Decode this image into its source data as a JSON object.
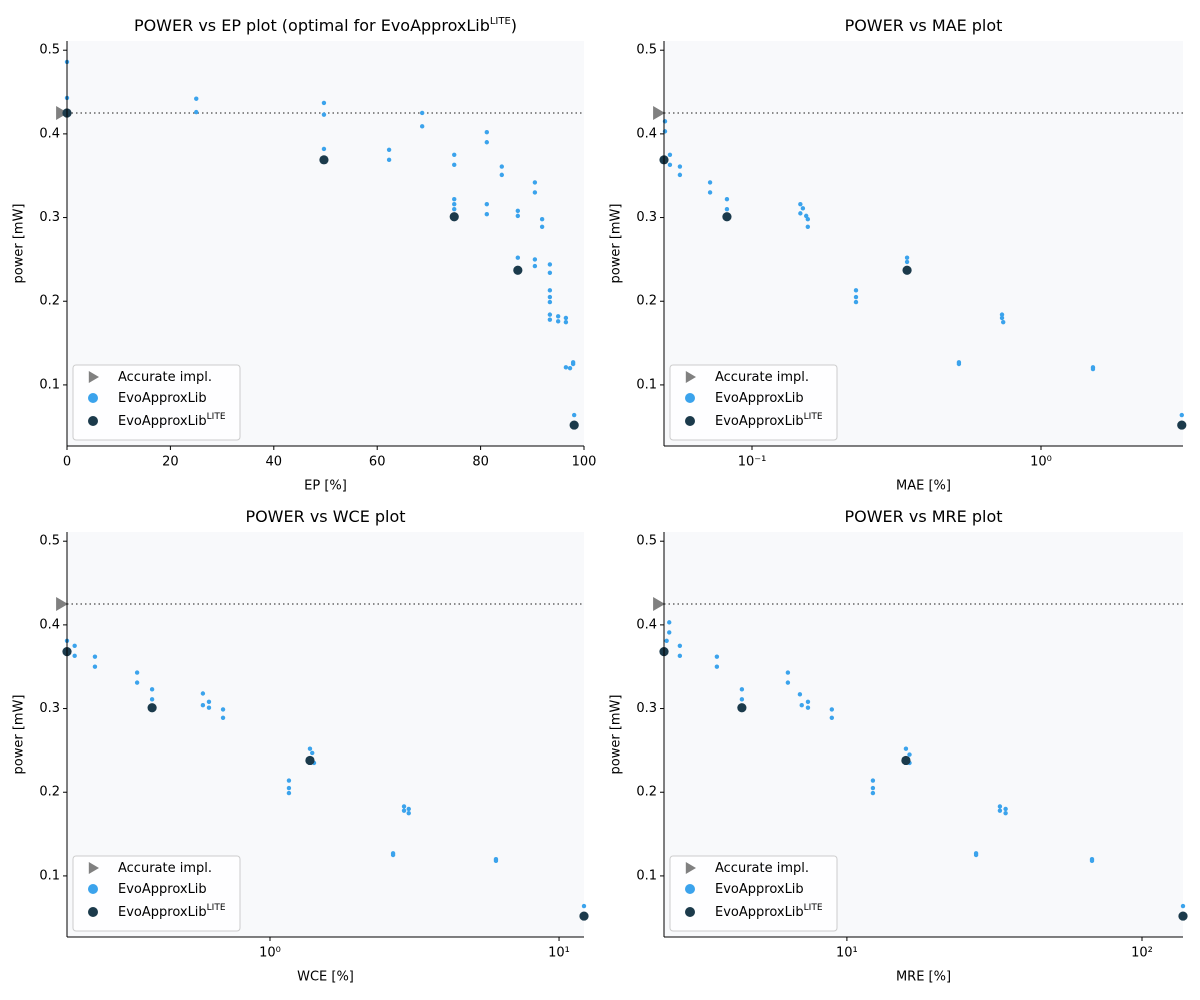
{
  "chart_data": [
    {
      "type": "scatter",
      "title": [
        "POWER vs EP plot (optimal for EvoApproxLib",
        "LITE",
        ")"
      ],
      "x_label": "EP [%]",
      "y_label": "power [mW]",
      "xscale": "linear",
      "xlim": [
        0,
        100
      ],
      "xticks": [
        0,
        20,
        40,
        60,
        80,
        100
      ],
      "ylim": [
        0.027,
        0.511
      ],
      "yticks": [
        0.1,
        0.2,
        0.3,
        0.4,
        0.5
      ],
      "reference_line": 0.425,
      "legend": "lower left",
      "series": [
        {
          "name": [
            "Accurate impl."
          ],
          "color": "#808080",
          "marker": "triangle",
          "x": [
            0
          ],
          "values": [
            0.425
          ]
        },
        {
          "name": [
            "EvoApproxLib"
          ],
          "color": "#3ba3ec",
          "marker": "dot",
          "x": [
            0,
            0,
            0,
            25,
            25,
            49.7,
            49.7,
            49.7,
            62.3,
            62.3,
            68.7,
            68.7,
            74.9,
            74.9,
            74.9,
            74.9,
            74.9,
            81.2,
            81.2,
            81.2,
            81.2,
            84.1,
            84.1,
            87.2,
            87.2,
            87.2,
            90.5,
            90.5,
            90.5,
            90.5,
            91.9,
            91.9,
            93.4,
            93.4,
            93.4,
            93.4,
            93.4,
            93.4,
            93.4,
            95,
            95,
            96.5,
            96.5,
            96.5,
            97.3,
            97.9,
            97.9,
            98.1
          ],
          "values": [
            0.486,
            0.443,
            0.425,
            0.442,
            0.426,
            0.437,
            0.423,
            0.382,
            0.381,
            0.369,
            0.425,
            0.409,
            0.375,
            0.363,
            0.322,
            0.316,
            0.31,
            0.402,
            0.39,
            0.316,
            0.304,
            0.361,
            0.351,
            0.308,
            0.302,
            0.252,
            0.342,
            0.33,
            0.25,
            0.242,
            0.298,
            0.289,
            0.244,
            0.234,
            0.213,
            0.205,
            0.199,
            0.184,
            0.178,
            0.182,
            0.176,
            0.18,
            0.175,
            0.121,
            0.12,
            0.127,
            0.125,
            0.064
          ]
        },
        {
          "name": [
            "EvoApproxLib",
            "LITE"
          ],
          "color": "#1b3a4b",
          "marker": "circle",
          "x": [
            0,
            49.7,
            74.9,
            87.2,
            98.1
          ],
          "values": [
            0.425,
            0.369,
            0.301,
            0.237,
            0.052
          ]
        }
      ]
    },
    {
      "type": "scatter",
      "title": [
        "POWER vs MAE plot"
      ],
      "x_label": "MAE [%]",
      "y_label": "power [mW]",
      "xscale": "log",
      "xlim": [
        0.0496,
        3.1
      ],
      "xticks": [
        {
          "value": 0.1,
          "label": "10⁻¹"
        },
        {
          "value": 1,
          "label": "10⁰"
        }
      ],
      "ylim": [
        0.027,
        0.511
      ],
      "yticks": [
        0.1,
        0.2,
        0.3,
        0.4,
        0.5
      ],
      "reference_line": 0.425,
      "legend": "lower left",
      "series": [
        {
          "name": [
            "Accurate impl."
          ],
          "color": "#808080",
          "marker": "triangle",
          "x": [
            0.0496
          ],
          "values": [
            0.425
          ]
        },
        {
          "name": [
            "EvoApproxLib"
          ],
          "color": "#3ba3ec",
          "marker": "dot",
          "x": [
            0.05,
            0.05,
            0.052,
            0.052,
            0.0563,
            0.0563,
            0.0716,
            0.0716,
            0.0819,
            0.0819,
            0.147,
            0.147,
            0.15,
            0.154,
            0.156,
            0.156,
            0.229,
            0.229,
            0.229,
            0.344,
            0.344,
            0.733,
            0.733,
            0.74,
            0.52,
            0.52,
            1.513,
            1.513,
            3.07
          ],
          "values": [
            0.415,
            0.403,
            0.375,
            0.363,
            0.361,
            0.351,
            0.342,
            0.33,
            0.322,
            0.31,
            0.316,
            0.305,
            0.311,
            0.302,
            0.298,
            0.289,
            0.213,
            0.205,
            0.199,
            0.252,
            0.247,
            0.184,
            0.18,
            0.175,
            0.127,
            0.125,
            0.121,
            0.119,
            0.064
          ]
        },
        {
          "name": [
            "EvoApproxLib",
            "LITE"
          ],
          "color": "#1b3a4b",
          "marker": "circle",
          "x": [
            0.0496,
            0.0819,
            0.344,
            3.07
          ],
          "values": [
            0.369,
            0.301,
            0.237,
            0.052
          ]
        }
      ]
    },
    {
      "type": "scatter",
      "title": [
        "POWER vs WCE plot"
      ],
      "x_label": "WCE [%]",
      "y_label": "power [mW]",
      "xscale": "log",
      "xlim": [
        0.1985,
        12.2
      ],
      "xticks": [
        {
          "value": 1,
          "label": "10⁰"
        },
        {
          "value": 10,
          "label": "10¹"
        }
      ],
      "ylim": [
        0.027,
        0.511
      ],
      "yticks": [
        0.1,
        0.2,
        0.3,
        0.4,
        0.5
      ],
      "reference_line": 0.425,
      "legend": "lower left",
      "series": [
        {
          "name": [
            "Accurate impl."
          ],
          "color": "#808080",
          "marker": "triangle",
          "x": [
            0.1985
          ],
          "values": [
            0.425
          ]
        },
        {
          "name": [
            "EvoApproxLib"
          ],
          "color": "#3ba3ec",
          "marker": "dot",
          "x": [
            0.1985,
            0.211,
            0.211,
            0.248,
            0.248,
            0.347,
            0.347,
            0.391,
            0.391,
            0.586,
            0.586,
            0.615,
            0.615,
            0.688,
            0.688,
            1.163,
            1.163,
            1.163,
            1.375,
            1.4,
            1.42,
            2.909,
            2.909,
            3.02,
            3.02,
            2.666,
            2.666,
            6.05,
            6.05,
            12.2
          ],
          "values": [
            0.381,
            0.375,
            0.363,
            0.362,
            0.35,
            0.343,
            0.331,
            0.323,
            0.311,
            0.318,
            0.304,
            0.308,
            0.301,
            0.299,
            0.289,
            0.214,
            0.205,
            0.199,
            0.252,
            0.247,
            0.235,
            0.183,
            0.178,
            0.18,
            0.175,
            0.127,
            0.125,
            0.12,
            0.118,
            0.064
          ]
        },
        {
          "name": [
            "EvoApproxLib",
            "LITE"
          ],
          "color": "#1b3a4b",
          "marker": "circle",
          "x": [
            0.1985,
            0.391,
            1.375,
            12.2
          ],
          "values": [
            0.368,
            0.301,
            0.238,
            0.052
          ]
        }
      ]
    },
    {
      "type": "scatter",
      "title": [
        "POWER vs MRE plot"
      ],
      "x_label": "MRE [%]",
      "y_label": "power [mW]",
      "xscale": "log",
      "xlim": [
        2.4,
        137.7
      ],
      "xticks": [
        {
          "value": 10,
          "label": "10¹"
        },
        {
          "value": 100,
          "label": "10²"
        }
      ],
      "ylim": [
        0.027,
        0.511
      ],
      "yticks": [
        0.1,
        0.2,
        0.3,
        0.4,
        0.5
      ],
      "reference_line": 0.425,
      "legend": "lower left",
      "series": [
        {
          "name": [
            "Accurate impl."
          ],
          "color": "#808080",
          "marker": "triangle",
          "x": [
            2.4
          ],
          "values": [
            0.425
          ]
        },
        {
          "name": [
            "EvoApproxLib"
          ],
          "color": "#3ba3ec",
          "marker": "dot",
          "x": [
            2.45,
            2.5,
            2.5,
            2.716,
            2.716,
            3.626,
            3.626,
            4.407,
            4.407,
            6.31,
            6.31,
            6.93,
            7.03,
            7.38,
            7.38,
            8.89,
            8.89,
            12.25,
            12.25,
            12.25,
            15.85,
            16.3,
            16.3,
            27.4,
            27.4,
            33.0,
            33.0,
            34.5,
            34.5,
            67.7,
            67.7,
            137.7
          ],
          "values": [
            0.381,
            0.403,
            0.391,
            0.375,
            0.363,
            0.362,
            0.35,
            0.323,
            0.311,
            0.343,
            0.331,
            0.317,
            0.304,
            0.308,
            0.301,
            0.299,
            0.289,
            0.214,
            0.205,
            0.199,
            0.252,
            0.245,
            0.235,
            0.127,
            0.125,
            0.183,
            0.178,
            0.18,
            0.175,
            0.12,
            0.118,
            0.064
          ]
        },
        {
          "name": [
            "EvoApproxLib",
            "LITE"
          ],
          "color": "#1b3a4b",
          "marker": "circle",
          "x": [
            2.4,
            4.407,
            15.85,
            137.7
          ],
          "values": [
            0.368,
            0.301,
            0.238,
            0.052
          ]
        }
      ]
    }
  ]
}
